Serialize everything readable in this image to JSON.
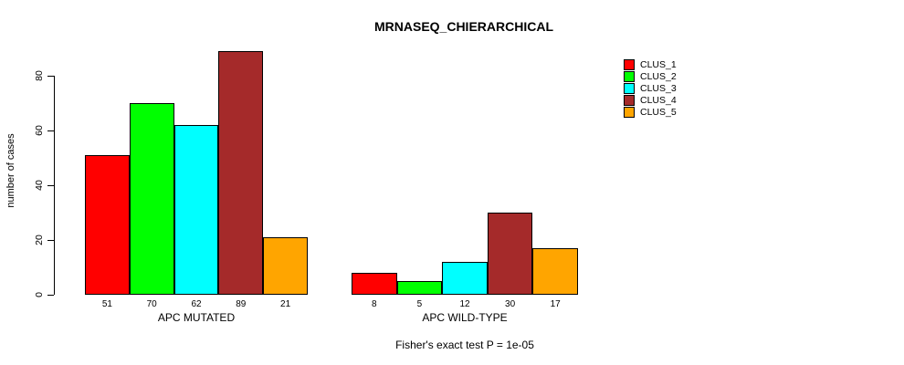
{
  "title": "MRNASEQ_CHIERARCHICAL",
  "caption": "Fisher's exact test P = 1e-05",
  "y_axis": {
    "label": "number of cases",
    "ticks": [
      0,
      20,
      40,
      60,
      80
    ]
  },
  "chart_data": {
    "type": "bar",
    "title": "MRNASEQ_CHIERARCHICAL",
    "xlabel": "",
    "ylabel": "number of cases",
    "ylim": [
      0,
      89
    ],
    "y_ticks": [
      0,
      20,
      40,
      60,
      80
    ],
    "grid": false,
    "legend_position": "right",
    "bar_value_labels": true,
    "categories": [
      "APC MUTATED",
      "APC WILD-TYPE"
    ],
    "series": [
      {
        "name": "CLUS_1",
        "color": "#FF0000",
        "values": [
          51,
          8
        ]
      },
      {
        "name": "CLUS_2",
        "color": "#00FF00",
        "values": [
          70,
          5
        ]
      },
      {
        "name": "CLUS_3",
        "color": "#00FFFF",
        "values": [
          62,
          12
        ]
      },
      {
        "name": "CLUS_4",
        "color": "#A52A2A",
        "values": [
          89,
          30
        ]
      },
      {
        "name": "CLUS_5",
        "color": "#FFA500",
        "values": [
          21,
          17
        ]
      }
    ],
    "annotation": "Fisher's exact test P = 1e-05"
  }
}
